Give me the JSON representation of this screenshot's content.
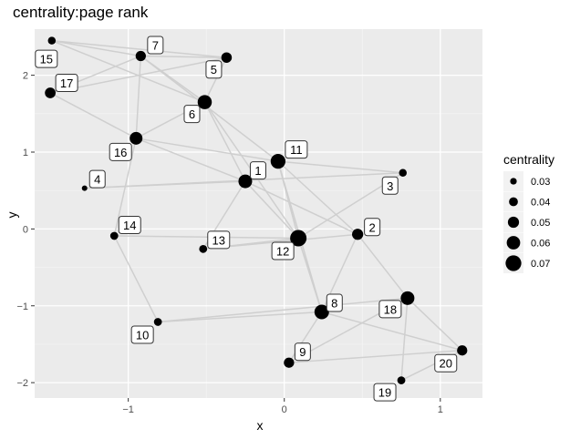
{
  "chart_data": {
    "type": "network-scatter",
    "title": "centrality:page rank",
    "xlabel": "x",
    "ylabel": "y",
    "xlim": [
      -1.6,
      1.27
    ],
    "ylim": [
      -2.2,
      2.6
    ],
    "x_ticks": [
      -1,
      0,
      1
    ],
    "y_ticks": [
      -2,
      -1,
      0,
      1,
      2
    ],
    "grid": true,
    "legend": {
      "title": "centrality",
      "position": "right",
      "values": [
        0.03,
        0.04,
        0.05,
        0.06,
        0.07
      ]
    },
    "nodes": [
      {
        "id": "1",
        "x": -0.25,
        "y": 0.62,
        "centrality": 0.061
      },
      {
        "id": "2",
        "x": 0.47,
        "y": -0.07,
        "centrality": 0.05
      },
      {
        "id": "3",
        "x": 0.76,
        "y": 0.73,
        "centrality": 0.035
      },
      {
        "id": "4",
        "x": -1.28,
        "y": 0.53,
        "centrality": 0.025
      },
      {
        "id": "5",
        "x": -0.37,
        "y": 2.23,
        "centrality": 0.047
      },
      {
        "id": "6",
        "x": -0.51,
        "y": 1.65,
        "centrality": 0.063
      },
      {
        "id": "7",
        "x": -0.92,
        "y": 2.25,
        "centrality": 0.046
      },
      {
        "id": "8",
        "x": 0.24,
        "y": -1.08,
        "centrality": 0.065
      },
      {
        "id": "9",
        "x": 0.03,
        "y": -1.74,
        "centrality": 0.046
      },
      {
        "id": "10",
        "x": -0.81,
        "y": -1.21,
        "centrality": 0.036
      },
      {
        "id": "11",
        "x": -0.04,
        "y": 0.88,
        "centrality": 0.066
      },
      {
        "id": "12",
        "x": 0.09,
        "y": -0.12,
        "centrality": 0.073
      },
      {
        "id": "13",
        "x": -0.52,
        "y": -0.26,
        "centrality": 0.036
      },
      {
        "id": "14",
        "x": -1.09,
        "y": -0.09,
        "centrality": 0.036
      },
      {
        "id": "15",
        "x": -1.49,
        "y": 2.45,
        "centrality": 0.035
      },
      {
        "id": "16",
        "x": -0.95,
        "y": 1.18,
        "centrality": 0.057
      },
      {
        "id": "17",
        "x": -1.5,
        "y": 1.77,
        "centrality": 0.048
      },
      {
        "id": "18",
        "x": 0.79,
        "y": -0.9,
        "centrality": 0.061
      },
      {
        "id": "19",
        "x": 0.75,
        "y": -1.97,
        "centrality": 0.036
      },
      {
        "id": "20",
        "x": 1.14,
        "y": -1.58,
        "centrality": 0.046
      }
    ],
    "edges": [
      [
        "15",
        "7"
      ],
      [
        "15",
        "5"
      ],
      [
        "15",
        "6"
      ],
      [
        "17",
        "7"
      ],
      [
        "17",
        "5"
      ],
      [
        "17",
        "16"
      ],
      [
        "7",
        "5"
      ],
      [
        "7",
        "6"
      ],
      [
        "7",
        "16"
      ],
      [
        "7",
        "11"
      ],
      [
        "5",
        "6"
      ],
      [
        "6",
        "16"
      ],
      [
        "6",
        "1"
      ],
      [
        "6",
        "12"
      ],
      [
        "16",
        "11"
      ],
      [
        "16",
        "1"
      ],
      [
        "16",
        "14"
      ],
      [
        "4",
        "1"
      ],
      [
        "4",
        "3"
      ],
      [
        "11",
        "3"
      ],
      [
        "11",
        "2"
      ],
      [
        "11",
        "12"
      ],
      [
        "11",
        "8"
      ],
      [
        "1",
        "12"
      ],
      [
        "1",
        "13"
      ],
      [
        "1",
        "2"
      ],
      [
        "3",
        "12"
      ],
      [
        "13",
        "12"
      ],
      [
        "13",
        "2"
      ],
      [
        "14",
        "12"
      ],
      [
        "12",
        "8"
      ],
      [
        "2",
        "18"
      ],
      [
        "2",
        "8"
      ],
      [
        "8",
        "20"
      ],
      [
        "8",
        "9"
      ],
      [
        "18",
        "19"
      ],
      [
        "18",
        "20"
      ],
      [
        "18",
        "10"
      ],
      [
        "10",
        "8"
      ],
      [
        "10",
        "14"
      ],
      [
        "9",
        "20"
      ],
      [
        "9",
        "18"
      ],
      [
        "19",
        "20"
      ]
    ]
  }
}
